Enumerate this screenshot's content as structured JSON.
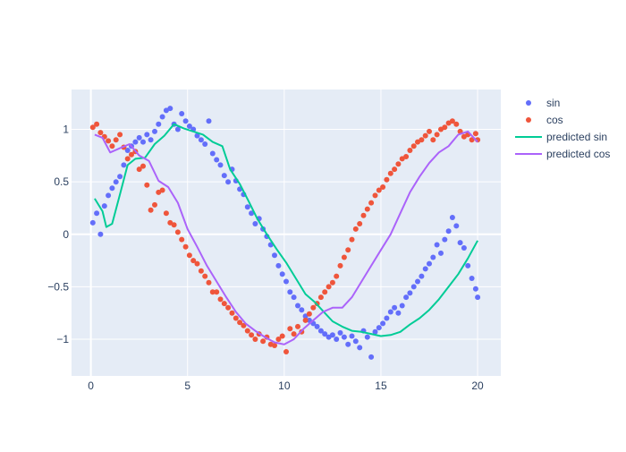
{
  "chart_data": {
    "type": "scatter",
    "x_range": [
      -1,
      21.2
    ],
    "y_range": [
      -1.35,
      1.38
    ],
    "x_ticks": [
      0,
      5,
      10,
      15,
      20
    ],
    "x_tick_labels": [
      "0",
      "5",
      "10",
      "15",
      "20"
    ],
    "y_ticks": [
      -1,
      -0.5,
      0,
      0.5,
      1
    ],
    "y_tick_labels": [
      "−1",
      "−0.5",
      "0",
      "0.5",
      "1"
    ],
    "grid": true,
    "legend_position": "right",
    "legend": [
      "sin",
      "cos",
      "predicted sin",
      "predicted cos"
    ],
    "series": [
      {
        "name": "sin",
        "mode": "markers",
        "color": "#636efa",
        "x": [
          0.1,
          0.3,
          0.5,
          0.7,
          0.9,
          1.1,
          1.3,
          1.5,
          1.7,
          1.9,
          2.1,
          2.3,
          2.5,
          2.7,
          2.9,
          3.1,
          3.3,
          3.5,
          3.7,
          3.9,
          4.1,
          4.3,
          4.5,
          4.7,
          4.9,
          5.1,
          5.3,
          5.5,
          5.7,
          5.9,
          6.1,
          6.3,
          6.5,
          6.7,
          6.9,
          7.1,
          7.3,
          7.5,
          7.7,
          7.9,
          8.1,
          8.3,
          8.5,
          8.7,
          8.9,
          9.1,
          9.3,
          9.5,
          9.7,
          9.9,
          10.1,
          10.3,
          10.5,
          10.7,
          10.9,
          11.1,
          11.3,
          11.5,
          11.7,
          11.9,
          12.1,
          12.3,
          12.5,
          12.7,
          12.9,
          13.1,
          13.3,
          13.5,
          13.7,
          13.9,
          14.1,
          14.3,
          14.5,
          14.7,
          14.9,
          15.1,
          15.3,
          15.5,
          15.7,
          15.9,
          16.1,
          16.3,
          16.5,
          16.7,
          16.9,
          17.1,
          17.3,
          17.5,
          17.7,
          17.9,
          18.1,
          18.3,
          18.5,
          18.7,
          18.9,
          19.1,
          19.3,
          19.5,
          19.7,
          19.9,
          20.0
        ],
        "y": [
          0.11,
          0.2,
          0.0,
          0.27,
          0.37,
          0.44,
          0.5,
          0.55,
          0.66,
          0.8,
          0.84,
          0.88,
          0.92,
          0.88,
          0.95,
          0.9,
          0.98,
          1.05,
          1.12,
          1.18,
          1.2,
          1.05,
          1.0,
          1.15,
          1.08,
          1.03,
          1.0,
          0.94,
          0.9,
          0.86,
          1.08,
          0.77,
          0.71,
          0.66,
          0.56,
          0.5,
          0.62,
          0.51,
          0.43,
          0.38,
          0.26,
          0.2,
          0.1,
          0.15,
          0.05,
          -0.02,
          -0.1,
          -0.2,
          -0.3,
          -0.38,
          -0.45,
          -0.55,
          -0.6,
          -0.68,
          -0.72,
          -0.78,
          -0.82,
          -0.85,
          -0.88,
          -0.92,
          -0.95,
          -0.98,
          -0.96,
          -1.0,
          -0.94,
          -0.98,
          -1.05,
          -0.97,
          -1.02,
          -1.08,
          -0.92,
          -0.98,
          -1.17,
          -0.93,
          -0.89,
          -0.85,
          -0.8,
          -0.74,
          -0.7,
          -0.75,
          -0.68,
          -0.6,
          -0.56,
          -0.5,
          -0.45,
          -0.4,
          -0.33,
          -0.28,
          -0.22,
          -0.1,
          -0.18,
          -0.05,
          0.03,
          0.16,
          0.08,
          -0.08,
          -0.13,
          -0.3,
          -0.42,
          -0.52,
          -0.6
        ]
      },
      {
        "name": "cos",
        "mode": "markers",
        "color": "#ef553b",
        "x": [
          0.1,
          0.3,
          0.5,
          0.7,
          0.9,
          1.1,
          1.3,
          1.5,
          1.7,
          1.9,
          2.1,
          2.3,
          2.5,
          2.7,
          2.9,
          3.1,
          3.3,
          3.5,
          3.7,
          3.9,
          4.1,
          4.3,
          4.5,
          4.7,
          4.9,
          5.1,
          5.3,
          5.5,
          5.7,
          5.9,
          6.1,
          6.3,
          6.5,
          6.7,
          6.9,
          7.1,
          7.3,
          7.5,
          7.7,
          7.9,
          8.1,
          8.3,
          8.5,
          8.7,
          8.9,
          9.1,
          9.3,
          9.5,
          9.7,
          9.9,
          10.1,
          10.3,
          10.5,
          10.7,
          10.9,
          11.1,
          11.3,
          11.5,
          11.7,
          11.9,
          12.1,
          12.3,
          12.5,
          12.7,
          12.9,
          13.1,
          13.3,
          13.5,
          13.7,
          13.9,
          14.1,
          14.3,
          14.5,
          14.7,
          14.9,
          15.1,
          15.3,
          15.5,
          15.7,
          15.9,
          16.1,
          16.3,
          16.5,
          16.7,
          16.9,
          17.1,
          17.3,
          17.5,
          17.7,
          17.9,
          18.1,
          18.3,
          18.5,
          18.7,
          18.9,
          19.1,
          19.3,
          19.5,
          19.7,
          19.9,
          20.0
        ],
        "y": [
          1.02,
          1.05,
          0.97,
          0.93,
          0.89,
          0.84,
          0.9,
          0.95,
          0.83,
          0.72,
          0.76,
          0.79,
          0.62,
          0.65,
          0.47,
          0.23,
          0.28,
          0.4,
          0.42,
          0.2,
          0.11,
          0.09,
          0.02,
          -0.05,
          -0.12,
          -0.2,
          -0.25,
          -0.28,
          -0.35,
          -0.4,
          -0.46,
          -0.55,
          -0.55,
          -0.62,
          -0.66,
          -0.7,
          -0.75,
          -0.8,
          -0.84,
          -0.87,
          -0.92,
          -0.96,
          -1.0,
          -0.95,
          -1.02,
          -0.98,
          -1.05,
          -1.06,
          -1.0,
          -0.97,
          -1.12,
          -0.9,
          -0.95,
          -0.88,
          -0.93,
          -0.82,
          -0.76,
          -0.7,
          -0.66,
          -0.6,
          -0.55,
          -0.5,
          -0.46,
          -0.4,
          -0.3,
          -0.22,
          -0.15,
          -0.05,
          0.05,
          0.1,
          0.18,
          0.24,
          0.3,
          0.37,
          0.42,
          0.45,
          0.52,
          0.58,
          0.62,
          0.67,
          0.72,
          0.74,
          0.8,
          0.84,
          0.88,
          0.9,
          0.94,
          0.98,
          0.9,
          0.95,
          1.0,
          1.02,
          1.06,
          1.08,
          1.05,
          0.98,
          0.93,
          0.95,
          0.9,
          0.96,
          0.9
        ]
      },
      {
        "name": "predicted sin",
        "mode": "lines",
        "color": "#00cc96",
        "x": [
          0.2,
          0.6,
          0.8,
          1.1,
          1.5,
          1.9,
          2.3,
          2.8,
          3.3,
          3.8,
          4.3,
          4.8,
          5.3,
          5.8,
          6.3,
          6.8,
          7.2,
          7.7,
          8.2,
          8.6,
          9.1,
          9.6,
          10.1,
          10.6,
          11.1,
          11.6,
          12.1,
          12.5,
          13.0,
          13.5,
          14.0,
          14.5,
          15.0,
          15.5,
          16.0,
          16.5,
          17.0,
          17.5,
          18.0,
          18.5,
          19.0,
          19.5,
          20.0
        ],
        "y": [
          0.34,
          0.22,
          0.07,
          0.1,
          0.38,
          0.66,
          0.72,
          0.73,
          0.86,
          0.94,
          1.05,
          1.01,
          0.98,
          0.95,
          0.88,
          0.84,
          0.62,
          0.48,
          0.3,
          0.15,
          0.0,
          -0.14,
          -0.27,
          -0.42,
          -0.57,
          -0.65,
          -0.75,
          -0.83,
          -0.88,
          -0.92,
          -0.93,
          -0.95,
          -0.97,
          -0.96,
          -0.93,
          -0.86,
          -0.8,
          -0.72,
          -0.62,
          -0.5,
          -0.38,
          -0.23,
          -0.06
        ]
      },
      {
        "name": "predicted cos",
        "mode": "lines",
        "color": "#ab63fa",
        "x": [
          0.2,
          0.6,
          1.0,
          1.5,
          2.0,
          2.5,
          3.0,
          3.5,
          4.0,
          4.5,
          5.0,
          5.5,
          6.0,
          6.5,
          7.0,
          7.5,
          8.0,
          8.5,
          9.0,
          9.5,
          10.0,
          10.5,
          11.0,
          11.5,
          12.0,
          12.5,
          13.0,
          13.5,
          14.0,
          14.5,
          15.0,
          15.5,
          16.0,
          16.5,
          17.0,
          17.5,
          18.0,
          18.5,
          19.0,
          19.5,
          20.0
        ],
        "y": [
          0.95,
          0.92,
          0.78,
          0.82,
          0.86,
          0.75,
          0.7,
          0.51,
          0.45,
          0.3,
          0.05,
          -0.12,
          -0.3,
          -0.45,
          -0.6,
          -0.74,
          -0.85,
          -0.92,
          -0.98,
          -1.03,
          -1.05,
          -1.0,
          -0.9,
          -0.82,
          -0.74,
          -0.7,
          -0.7,
          -0.6,
          -0.45,
          -0.3,
          -0.15,
          0.0,
          0.2,
          0.4,
          0.55,
          0.68,
          0.78,
          0.84,
          0.95,
          0.98,
          0.88
        ]
      }
    ]
  }
}
